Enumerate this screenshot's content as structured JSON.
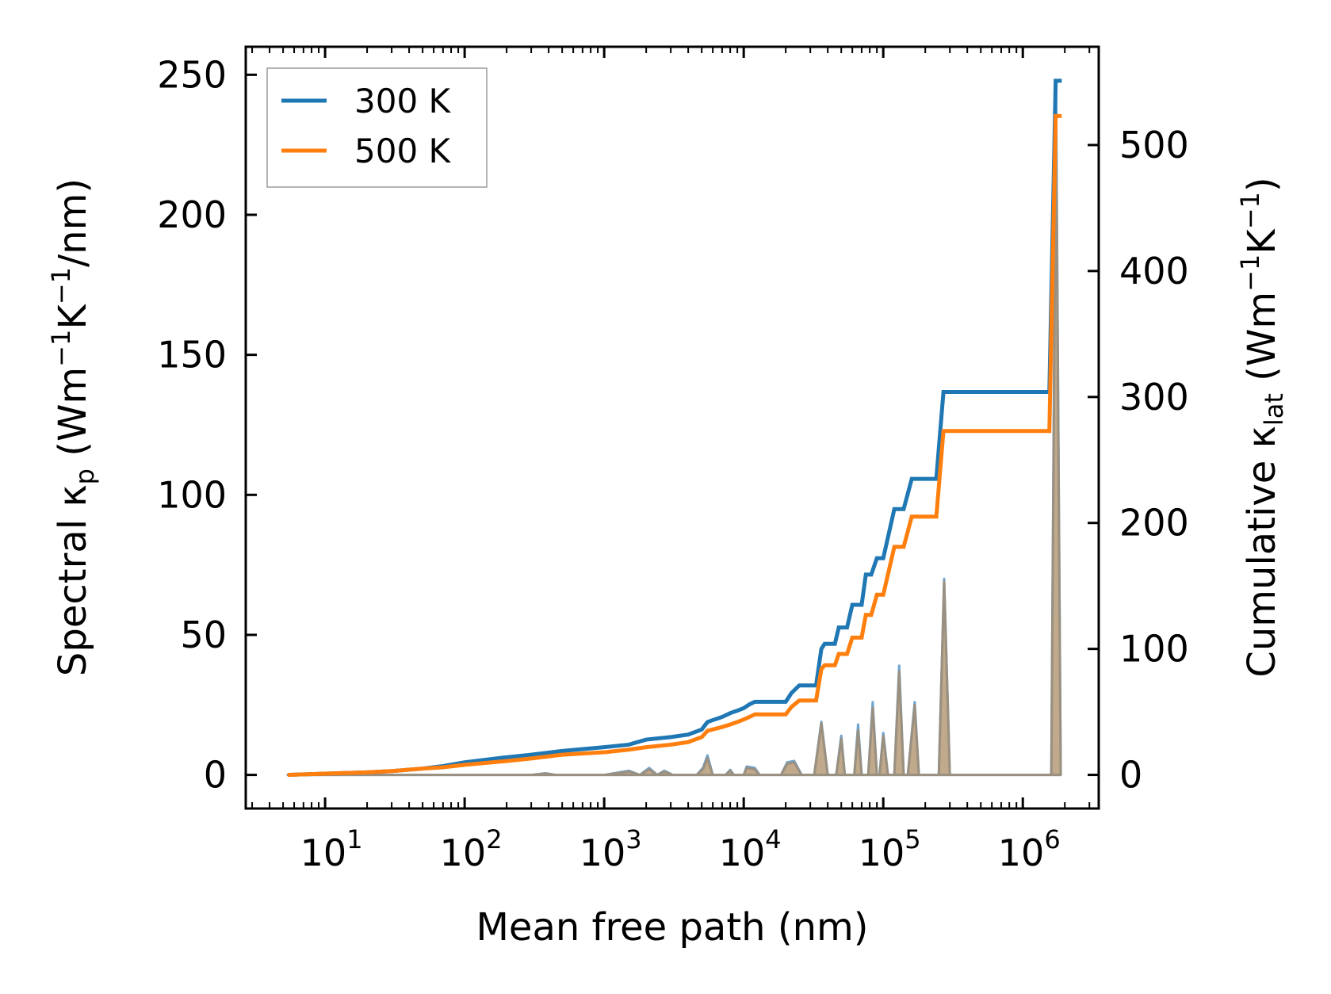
{
  "chart_data": {
    "type": "line",
    "xlabel": "Mean free path (nm)",
    "ylabel_left": {
      "prefix": "Spectral κ",
      "sub": "p",
      "unit": " (Wm",
      "sup1": "−1",
      "mid": "K",
      "sup2": "−1",
      "suffix": "/nm)"
    },
    "ylabel_right": {
      "prefix": "Cumulative κ",
      "sub": "lat",
      "unit": " (Wm",
      "sup1": "−1",
      "mid": "K",
      "sup2": "−1",
      "suffix": ")"
    },
    "xscale": "log",
    "xlim": [
      2.7,
      3500000
    ],
    "ylim_left": [
      -12,
      260
    ],
    "ylim_right": [
      -26.7,
      578
    ],
    "xticks": [
      {
        "base": "10",
        "exp": "1",
        "value": 10
      },
      {
        "base": "10",
        "exp": "2",
        "value": 100
      },
      {
        "base": "10",
        "exp": "3",
        "value": 1000
      },
      {
        "base": "10",
        "exp": "4",
        "value": 10000
      },
      {
        "base": "10",
        "exp": "5",
        "value": 100000
      },
      {
        "base": "10",
        "exp": "6",
        "value": 1000000
      }
    ],
    "yticks_left": [
      "0",
      "50",
      "100",
      "150",
      "200",
      "250"
    ],
    "yticks_right": [
      "0",
      "100",
      "200",
      "300",
      "400",
      "500"
    ],
    "legend": {
      "position": "top-left",
      "entries": [
        "300 K",
        "500 K"
      ]
    },
    "colors": {
      "s300": "#1f77b4",
      "s500": "#ff7f0e",
      "frame": "#000000"
    },
    "series": [
      {
        "name": "300 K",
        "axis": "right",
        "points": [
          [
            5.4,
            0
          ],
          [
            10,
            1
          ],
          [
            20,
            2
          ],
          [
            30,
            3
          ],
          [
            50,
            5
          ],
          [
            70,
            7
          ],
          [
            100,
            10
          ],
          [
            200,
            14
          ],
          [
            300,
            16
          ],
          [
            500,
            19
          ],
          [
            1000,
            22
          ],
          [
            1500,
            24
          ],
          [
            2000,
            28
          ],
          [
            3000,
            30
          ],
          [
            4000,
            32
          ],
          [
            5000,
            36
          ],
          [
            5500,
            42
          ],
          [
            7000,
            46
          ],
          [
            8000,
            49
          ],
          [
            9000,
            51
          ],
          [
            10000,
            53
          ],
          [
            11000,
            56
          ],
          [
            12000,
            58
          ],
          [
            20000,
            58
          ],
          [
            22000,
            65
          ],
          [
            25000,
            71
          ],
          [
            33000,
            71
          ],
          [
            36000,
            100
          ],
          [
            38000,
            104
          ],
          [
            45000,
            104
          ],
          [
            48000,
            117
          ],
          [
            55000,
            117
          ],
          [
            60000,
            135
          ],
          [
            70000,
            135
          ],
          [
            75000,
            159
          ],
          [
            82000,
            159
          ],
          [
            90000,
            172
          ],
          [
            100000,
            172
          ],
          [
            120000,
            211
          ],
          [
            140000,
            211
          ],
          [
            160000,
            235
          ],
          [
            240000,
            235
          ],
          [
            270000,
            304
          ],
          [
            1550000,
            304
          ],
          [
            1720000,
            551
          ],
          [
            1900000,
            551
          ]
        ]
      },
      {
        "name": "500 K",
        "axis": "right",
        "points": [
          [
            5.4,
            0
          ],
          [
            10,
            1
          ],
          [
            20,
            2
          ],
          [
            30,
            3
          ],
          [
            50,
            5
          ],
          [
            70,
            6
          ],
          [
            100,
            8
          ],
          [
            200,
            11
          ],
          [
            300,
            13
          ],
          [
            500,
            16
          ],
          [
            1000,
            18
          ],
          [
            1500,
            20
          ],
          [
            2000,
            22
          ],
          [
            3000,
            24
          ],
          [
            4000,
            26
          ],
          [
            5000,
            30
          ],
          [
            5500,
            35
          ],
          [
            7000,
            38
          ],
          [
            8000,
            40
          ],
          [
            9000,
            42
          ],
          [
            10000,
            44
          ],
          [
            11000,
            46
          ],
          [
            12000,
            48
          ],
          [
            20000,
            48
          ],
          [
            22000,
            54
          ],
          [
            25000,
            59
          ],
          [
            33000,
            59
          ],
          [
            36000,
            84
          ],
          [
            38000,
            87
          ],
          [
            45000,
            87
          ],
          [
            48000,
            96
          ],
          [
            55000,
            96
          ],
          [
            60000,
            109
          ],
          [
            70000,
            109
          ],
          [
            75000,
            127
          ],
          [
            82000,
            127
          ],
          [
            90000,
            143
          ],
          [
            100000,
            143
          ],
          [
            120000,
            181
          ],
          [
            140000,
            181
          ],
          [
            160000,
            205
          ],
          [
            240000,
            205
          ],
          [
            270000,
            273
          ],
          [
            1550000,
            273
          ],
          [
            1720000,
            523
          ],
          [
            1900000,
            523
          ]
        ]
      }
    ],
    "spectral_300": [
      [
        5.4,
        0
      ],
      [
        300,
        0
      ],
      [
        380,
        0.6
      ],
      [
        450,
        0
      ],
      [
        1000,
        0
      ],
      [
        1500,
        1.5
      ],
      [
        1800,
        0
      ],
      [
        2100,
        2.5
      ],
      [
        2400,
        0
      ],
      [
        2700,
        1.5
      ],
      [
        3100,
        0
      ],
      [
        4600,
        0
      ],
      [
        5100,
        2.5
      ],
      [
        5500,
        7
      ],
      [
        6000,
        0
      ],
      [
        7400,
        0
      ],
      [
        8000,
        1.8
      ],
      [
        8500,
        0
      ],
      [
        10000,
        0
      ],
      [
        10500,
        3
      ],
      [
        12000,
        2.5
      ],
      [
        13000,
        0
      ],
      [
        18500,
        0
      ],
      [
        20500,
        4.5
      ],
      [
        23000,
        5
      ],
      [
        26000,
        0
      ],
      [
        32000,
        0
      ],
      [
        36000,
        19
      ],
      [
        40000,
        0
      ],
      [
        46000,
        0
      ],
      [
        50000,
        14
      ],
      [
        53000,
        0
      ],
      [
        62000,
        0
      ],
      [
        66000,
        18
      ],
      [
        70000,
        0
      ],
      [
        78000,
        0
      ],
      [
        84000,
        26
      ],
      [
        90000,
        0
      ],
      [
        94000,
        0
      ],
      [
        100000,
        15
      ],
      [
        108000,
        0
      ],
      [
        120000,
        0
      ],
      [
        130000,
        39
      ],
      [
        140000,
        0
      ],
      [
        150000,
        0
      ],
      [
        168000,
        26
      ],
      [
        180000,
        0
      ],
      [
        250000,
        0
      ],
      [
        273000,
        70
      ],
      [
        300000,
        0
      ],
      [
        1600000,
        0
      ],
      [
        1730000,
        248
      ],
      [
        1870000,
        0
      ]
    ],
    "spectral_500": [
      [
        5.4,
        0
      ],
      [
        300,
        0
      ],
      [
        380,
        0.5
      ],
      [
        450,
        0
      ],
      [
        1000,
        0
      ],
      [
        1500,
        1.2
      ],
      [
        1800,
        0
      ],
      [
        2100,
        2
      ],
      [
        2400,
        0
      ],
      [
        2700,
        1.2
      ],
      [
        3100,
        0
      ],
      [
        4600,
        0
      ],
      [
        5100,
        2
      ],
      [
        5500,
        6
      ],
      [
        6000,
        0
      ],
      [
        7400,
        0
      ],
      [
        8000,
        1.5
      ],
      [
        8500,
        0
      ],
      [
        10000,
        0
      ],
      [
        10500,
        2.5
      ],
      [
        12000,
        2
      ],
      [
        13000,
        0
      ],
      [
        18500,
        0
      ],
      [
        20500,
        4
      ],
      [
        23000,
        4.5
      ],
      [
        26000,
        0
      ],
      [
        32000,
        0
      ],
      [
        36000,
        18.5
      ],
      [
        40000,
        0
      ],
      [
        46000,
        0
      ],
      [
        50000,
        13
      ],
      [
        53000,
        0
      ],
      [
        62000,
        0
      ],
      [
        66000,
        16
      ],
      [
        70000,
        0
      ],
      [
        78000,
        0
      ],
      [
        84000,
        24
      ],
      [
        90000,
        0
      ],
      [
        94000,
        0
      ],
      [
        100000,
        14
      ],
      [
        108000,
        0
      ],
      [
        120000,
        0
      ],
      [
        130000,
        37
      ],
      [
        140000,
        0
      ],
      [
        150000,
        0
      ],
      [
        168000,
        25
      ],
      [
        180000,
        0
      ],
      [
        250000,
        0
      ],
      [
        273000,
        69
      ],
      [
        300000,
        0
      ],
      [
        1600000,
        0
      ],
      [
        1730000,
        235
      ],
      [
        1870000,
        0
      ]
    ]
  }
}
